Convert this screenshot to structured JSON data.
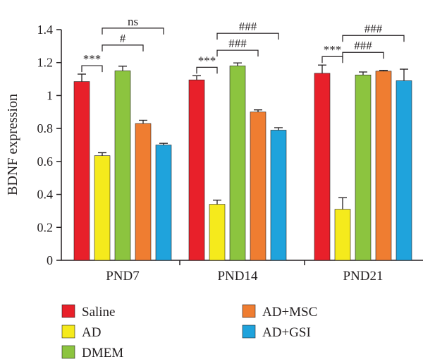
{
  "chart_data": {
    "type": "bar",
    "ylabel": "BDNF expression",
    "xlabel": "",
    "ylim": [
      0,
      1.4
    ],
    "yticks": [
      "0",
      "0.2",
      "0.4",
      "0.6",
      "0.8",
      "1",
      "1.2",
      "1.4"
    ],
    "categories": [
      "PND7",
      "PND14",
      "PND21"
    ],
    "series": [
      {
        "name": "Saline",
        "color": "#e8202a",
        "values": [
          1.085,
          1.095,
          1.135
        ],
        "errors": [
          0.045,
          0.025,
          0.05
        ]
      },
      {
        "name": "AD",
        "color": "#f5ea1c",
        "values": [
          0.635,
          0.34,
          0.31
        ],
        "errors": [
          0.018,
          0.025,
          0.07
        ]
      },
      {
        "name": "DMEM",
        "color": "#8cc43f",
        "values": [
          1.15,
          1.18,
          1.125
        ],
        "errors": [
          0.028,
          0.018,
          0.018
        ]
      },
      {
        "name": "AD+MSC",
        "color": "#ef7d31",
        "values": [
          0.83,
          0.9,
          1.148
        ],
        "errors": [
          0.02,
          0.013,
          0.005
        ]
      },
      {
        "name": "AD+GSI",
        "color": "#1fa3dc",
        "values": [
          0.7,
          0.79,
          1.09
        ],
        "errors": [
          0.01,
          0.015,
          0.07
        ]
      }
    ],
    "significance": [
      {
        "category": 0,
        "from": 0,
        "to": 1,
        "label": "***"
      },
      {
        "category": 0,
        "from": 1,
        "to": 3,
        "label": "#"
      },
      {
        "category": 0,
        "from": 1,
        "to": 4,
        "label": "ns"
      },
      {
        "category": 1,
        "from": 0,
        "to": 1,
        "label": "***"
      },
      {
        "category": 1,
        "from": 1,
        "to": 3,
        "label": "###"
      },
      {
        "category": 1,
        "from": 1,
        "to": 4,
        "label": "###"
      },
      {
        "category": 2,
        "from": 0,
        "to": 1,
        "label": "***"
      },
      {
        "category": 2,
        "from": 1,
        "to": 3,
        "label": "###"
      },
      {
        "category": 2,
        "from": 1,
        "to": 4,
        "label": "###"
      }
    ],
    "legend_position": "bottom"
  }
}
